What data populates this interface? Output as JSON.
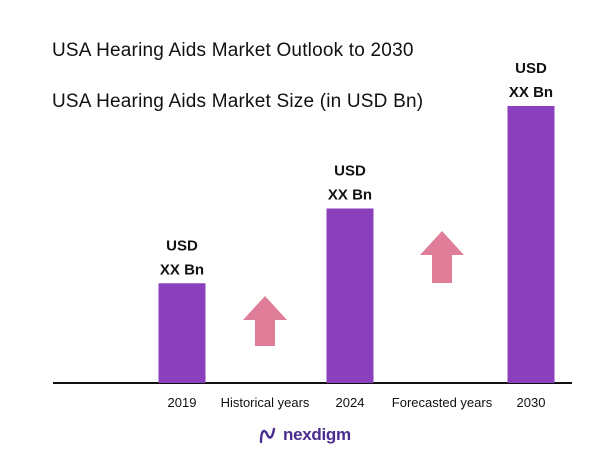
{
  "title": "USA Hearing Aids Market Outlook to 2030",
  "subtitle": "USA Hearing Aids Market Size (in USD Bn)",
  "brand": {
    "name": "nexdigm"
  },
  "colors": {
    "bar": "#8a3fbc",
    "arrow": "#e07e99",
    "axis": "#111111",
    "brand": "#4a2d8f"
  },
  "chart_data": {
    "type": "bar",
    "title": "USA Hearing Aids Market Size (in USD Bn)",
    "categories": [
      "2019",
      "2024",
      "2030"
    ],
    "value_labels": [
      [
        "USD",
        "XX Bn"
      ],
      [
        "USD",
        "XX Bn"
      ],
      [
        "USD",
        "XX Bn"
      ]
    ],
    "values": [
      0.36,
      0.63,
      1.0
    ],
    "value_scale": "relative (actual values undisclosed)",
    "annotations": [
      {
        "text": "Historical years",
        "between": [
          "2019",
          "2024"
        ],
        "icon": "arrow-up-icon"
      },
      {
        "text": "Forecasted years",
        "between": [
          "2024",
          "2030"
        ],
        "icon": "arrow-up-icon"
      }
    ],
    "grid": false,
    "legend": "none"
  }
}
